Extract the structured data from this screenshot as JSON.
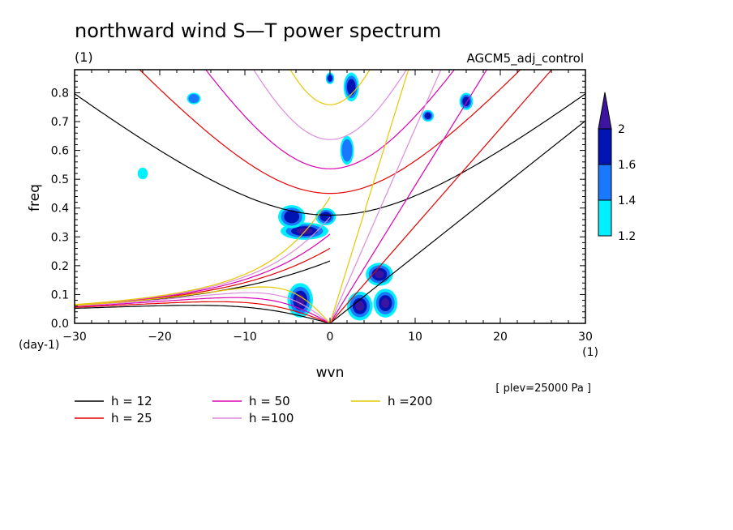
{
  "chart_data": {
    "type": "heatmap",
    "title": "northward wind S—T power spectrum",
    "title_unit": "(1)",
    "run_label": "AGCM5_adj_control",
    "xlabel": "wvn",
    "x_unit": "(1)",
    "ylabel": "freq",
    "y_unit": "(day-1)",
    "footer_note": "[ plev=25000 Pa ]",
    "xlim": [
      -30,
      30
    ],
    "ylim": [
      0,
      0.88
    ],
    "x_ticks": [
      -30,
      -20,
      -10,
      0,
      10,
      20,
      30
    ],
    "y_ticks": [
      0.0,
      0.1,
      0.2,
      0.3,
      0.4,
      0.5,
      0.6,
      0.7,
      0.8
    ],
    "colorbar": {
      "levels": [
        "1.2",
        "1.4",
        "1.6",
        "2"
      ],
      "colors": [
        "#00f0ff",
        "#1a78ff",
        "#0014b4",
        "#3c14a0"
      ],
      "extend": "max"
    },
    "shaded_regions": [
      {
        "x": -3.0,
        "y": 0.32,
        "rx": 2.8,
        "ry": 0.03,
        "level": 4
      },
      {
        "x": -4.5,
        "y": 0.37,
        "rx": 1.6,
        "ry": 0.04,
        "level": 3
      },
      {
        "x": -0.5,
        "y": 0.37,
        "rx": 1.2,
        "ry": 0.03,
        "level": 3
      },
      {
        "x": -3.5,
        "y": 0.08,
        "rx": 1.5,
        "ry": 0.06,
        "level": 4
      },
      {
        "x": 3.5,
        "y": 0.06,
        "rx": 1.5,
        "ry": 0.05,
        "level": 4
      },
      {
        "x": 5.8,
        "y": 0.17,
        "rx": 1.6,
        "ry": 0.04,
        "level": 4
      },
      {
        "x": 6.5,
        "y": 0.07,
        "rx": 1.4,
        "ry": 0.05,
        "level": 4
      },
      {
        "x": 2.0,
        "y": 0.6,
        "rx": 0.8,
        "ry": 0.05,
        "level": 2
      },
      {
        "x": 2.5,
        "y": 0.82,
        "rx": 0.9,
        "ry": 0.05,
        "level": 3
      },
      {
        "x": 16.0,
        "y": 0.77,
        "rx": 0.8,
        "ry": 0.03,
        "level": 3
      },
      {
        "x": 11.5,
        "y": 0.72,
        "rx": 0.7,
        "ry": 0.02,
        "level": 3
      },
      {
        "x": -22.0,
        "y": 0.52,
        "rx": 0.6,
        "ry": 0.02,
        "level": 1
      },
      {
        "x": 0.0,
        "y": 0.85,
        "rx": 0.5,
        "ry": 0.02,
        "level": 3
      },
      {
        "x": -16.0,
        "y": 0.78,
        "rx": 0.8,
        "ry": 0.02,
        "level": 2
      }
    ],
    "dispersion_curves": [
      {
        "name": "h = 12",
        "h": 12,
        "color": "#000000"
      },
      {
        "name": "h = 25",
        "h": 25,
        "color": "#e60000"
      },
      {
        "name": "h = 50",
        "h": 50,
        "color": "#dc00b4"
      },
      {
        "name": "h =100",
        "h": 100,
        "color": "#dc8cdc"
      },
      {
        "name": "h =200",
        "h": 200,
        "color": "#e6c800"
      }
    ]
  }
}
